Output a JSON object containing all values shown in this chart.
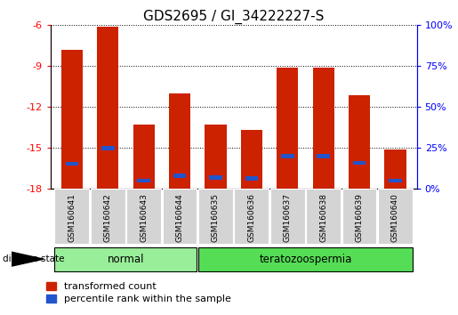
{
  "title": "GDS2695 / GI_34222227-S",
  "samples": [
    "GSM160641",
    "GSM160642",
    "GSM160643",
    "GSM160644",
    "GSM160635",
    "GSM160636",
    "GSM160637",
    "GSM160638",
    "GSM160639",
    "GSM160640"
  ],
  "groups": [
    "normal",
    "normal",
    "normal",
    "normal",
    "teratozoospermia",
    "teratozoospermia",
    "teratozoospermia",
    "teratozoospermia",
    "teratozoospermia",
    "teratozoospermia"
  ],
  "transformed_counts": [
    -7.8,
    -6.1,
    -13.3,
    -11.0,
    -13.3,
    -13.7,
    -9.1,
    -9.1,
    -11.1,
    -15.1
  ],
  "percentile_ranks": [
    15.5,
    25.0,
    5.0,
    8.0,
    7.0,
    6.5,
    20.0,
    20.0,
    16.0,
    5.0
  ],
  "y_min": -18,
  "y_max": -6,
  "y_ticks_left": [
    -6,
    -9,
    -12,
    -15,
    -18
  ],
  "y_ticks_right_vals": [
    100,
    75,
    50,
    25,
    0
  ],
  "bar_color": "#cc2200",
  "blue_color": "#2255cc",
  "bar_width": 0.6,
  "title_fontsize": 11,
  "tick_fontsize": 8,
  "legend_fontsize": 8,
  "group_normal_color": "#99ee99",
  "group_terato_color": "#55dd55"
}
